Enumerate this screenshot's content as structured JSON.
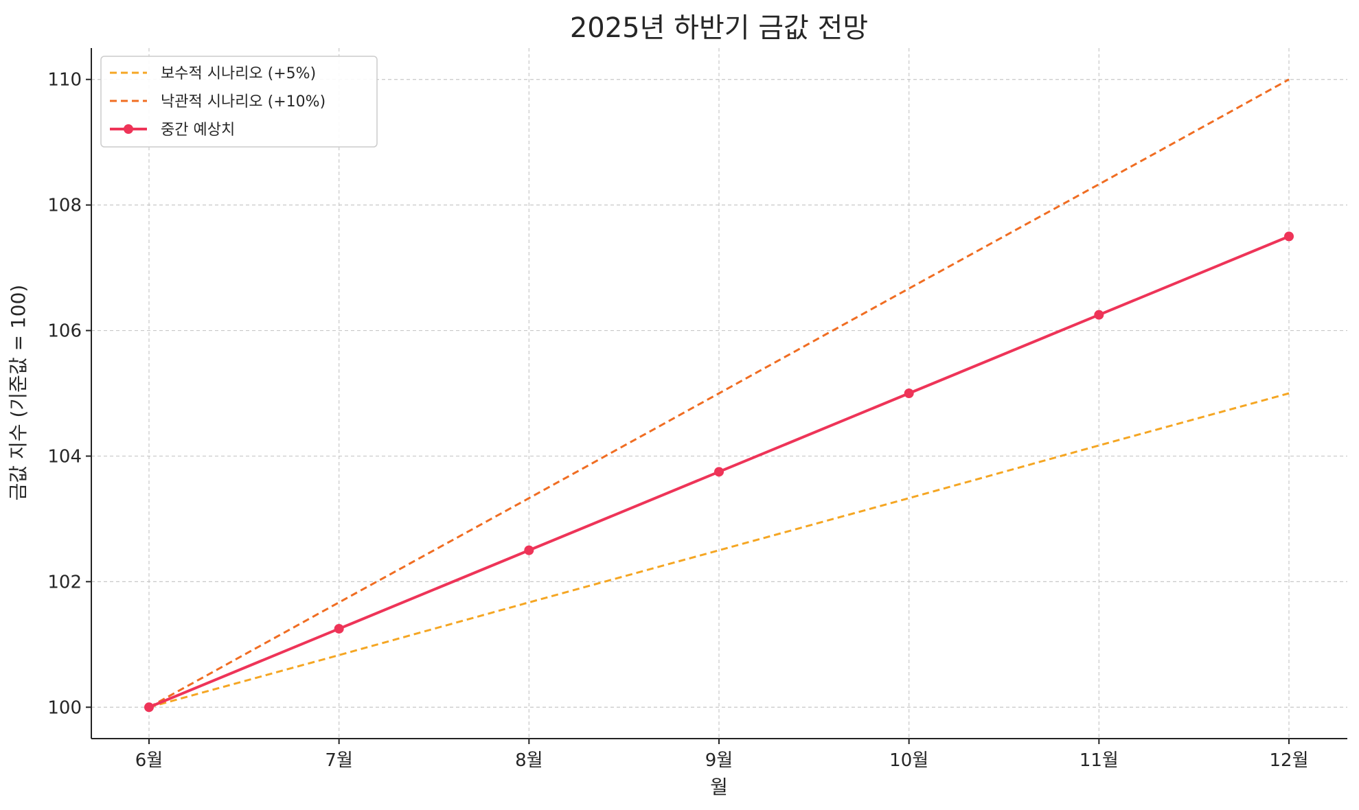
{
  "chart_data": {
    "type": "line",
    "title": "2025년 하반기 금값 전망",
    "xlabel": "월",
    "ylabel": "금값 지수 (기준값 = 100)",
    "categories": [
      "6월",
      "7월",
      "8월",
      "9월",
      "10월",
      "11월",
      "12월"
    ],
    "ylim": [
      99.5,
      110.5
    ],
    "yticks": [
      100,
      102,
      104,
      106,
      108,
      110
    ],
    "yticklabels": [
      "100",
      "102",
      "104",
      "106",
      "108",
      "110"
    ],
    "grid": true,
    "legend_position": "top-left",
    "series": [
      {
        "name": "보수적 시나리오 (+5%)",
        "values": [
          100,
          100.83,
          101.67,
          102.5,
          103.33,
          104.17,
          105
        ],
        "color": "#f5a623",
        "style": "dashed",
        "markers": false
      },
      {
        "name": "낙관적 시나리오 (+10%)",
        "values": [
          100,
          101.67,
          103.33,
          105,
          106.67,
          108.33,
          110
        ],
        "color": "#f06d22",
        "style": "dashed",
        "markers": false
      },
      {
        "name": "중간 예상치",
        "values": [
          100,
          101.25,
          102.5,
          103.75,
          105,
          106.25,
          107.5
        ],
        "color": "#ee3458",
        "style": "solid",
        "markers": true
      }
    ]
  }
}
